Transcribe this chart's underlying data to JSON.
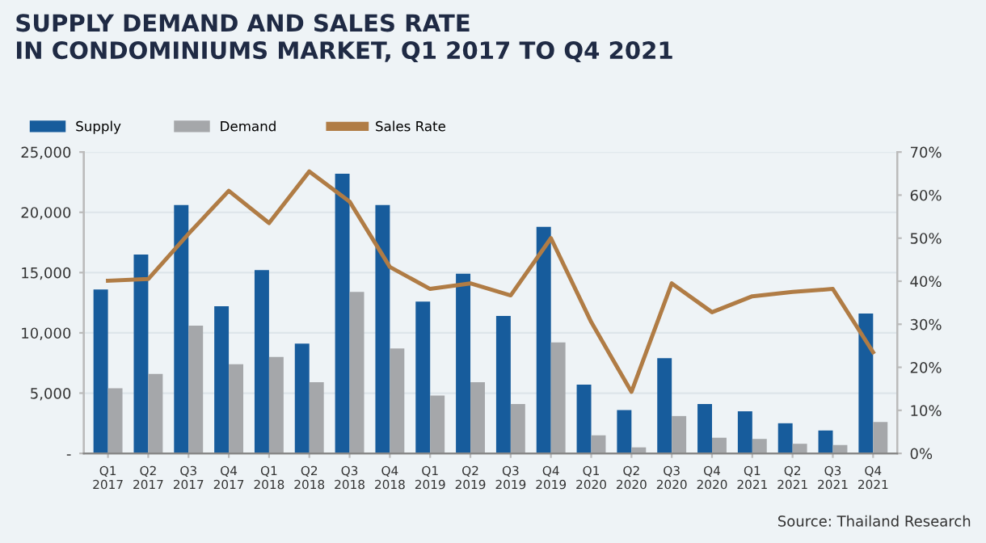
{
  "chart_data": {
    "type": "bar",
    "title": "SUPPLY DEMAND AND SALES RATE\nIN CONDOMINIUMS MARKET, Q1 2017 TO Q4 2021",
    "categories": [
      "Q1\n2017",
      "Q2\n2017",
      "Q3\n2017",
      "Q4\n2017",
      "Q1\n2018",
      "Q2\n2018",
      "Q3\n2018",
      "Q4\n2018",
      "Q1\n2019",
      "Q2\n2019",
      "Q3\n2019",
      "Q4\n2019",
      "Q1\n2020",
      "Q2\n2020",
      "Q3\n2020",
      "Q4\n2020",
      "Q1\n2021",
      "Q2\n2021",
      "Q3\n2021",
      "Q4\n2021"
    ],
    "series": [
      {
        "name": "Supply",
        "color": "#175c9c",
        "values": [
          13600,
          16500,
          20600,
          12200,
          15200,
          9100,
          23200,
          20600,
          12600,
          14900,
          11400,
          18800,
          5700,
          3600,
          7900,
          4100,
          3500,
          2500,
          1900,
          11600
        ]
      },
      {
        "name": "Demand",
        "color": "#a5a7aa",
        "values": [
          5400,
          6600,
          10600,
          7400,
          8000,
          5900,
          13400,
          8700,
          4800,
          5900,
          4100,
          9200,
          1500,
          500,
          3100,
          1300,
          1200,
          800,
          700,
          2600
        ]
      },
      {
        "name": "Sales Rate",
        "type": "line",
        "axis": "y2",
        "color": "#b07c45",
        "values": [
          40.1,
          40.5,
          51,
          61,
          53.5,
          65.5,
          58.5,
          43.3,
          38.2,
          39.5,
          36.7,
          50,
          30.5,
          14.3,
          39.5,
          32.8,
          36.5,
          37.5,
          38.2,
          23.5
        ]
      }
    ],
    "ylim": [
      0,
      25000
    ],
    "yticks": [
      {
        "value": 0,
        "label": "-"
      },
      {
        "value": 5000,
        "label": "5,000"
      },
      {
        "value": 10000,
        "label": "10,000"
      },
      {
        "value": 15000,
        "label": "15,000"
      },
      {
        "value": 20000,
        "label": "20,000"
      },
      {
        "value": 25000,
        "label": "25,000"
      }
    ],
    "y2lim": [
      0,
      70
    ],
    "y2ticks": [
      {
        "value": 0,
        "label": "0%"
      },
      {
        "value": 10,
        "label": "10%"
      },
      {
        "value": 20,
        "label": "20%"
      },
      {
        "value": 30,
        "label": "30%"
      },
      {
        "value": 40,
        "label": "40%"
      },
      {
        "value": 50,
        "label": "50%"
      },
      {
        "value": 60,
        "label": "60%"
      },
      {
        "value": 70,
        "label": "70%"
      }
    ],
    "grid": "y",
    "legend": "top left",
    "marker": "none",
    "line_style": "solid",
    "annotations": [
      "Source: Thailand Research"
    ]
  }
}
